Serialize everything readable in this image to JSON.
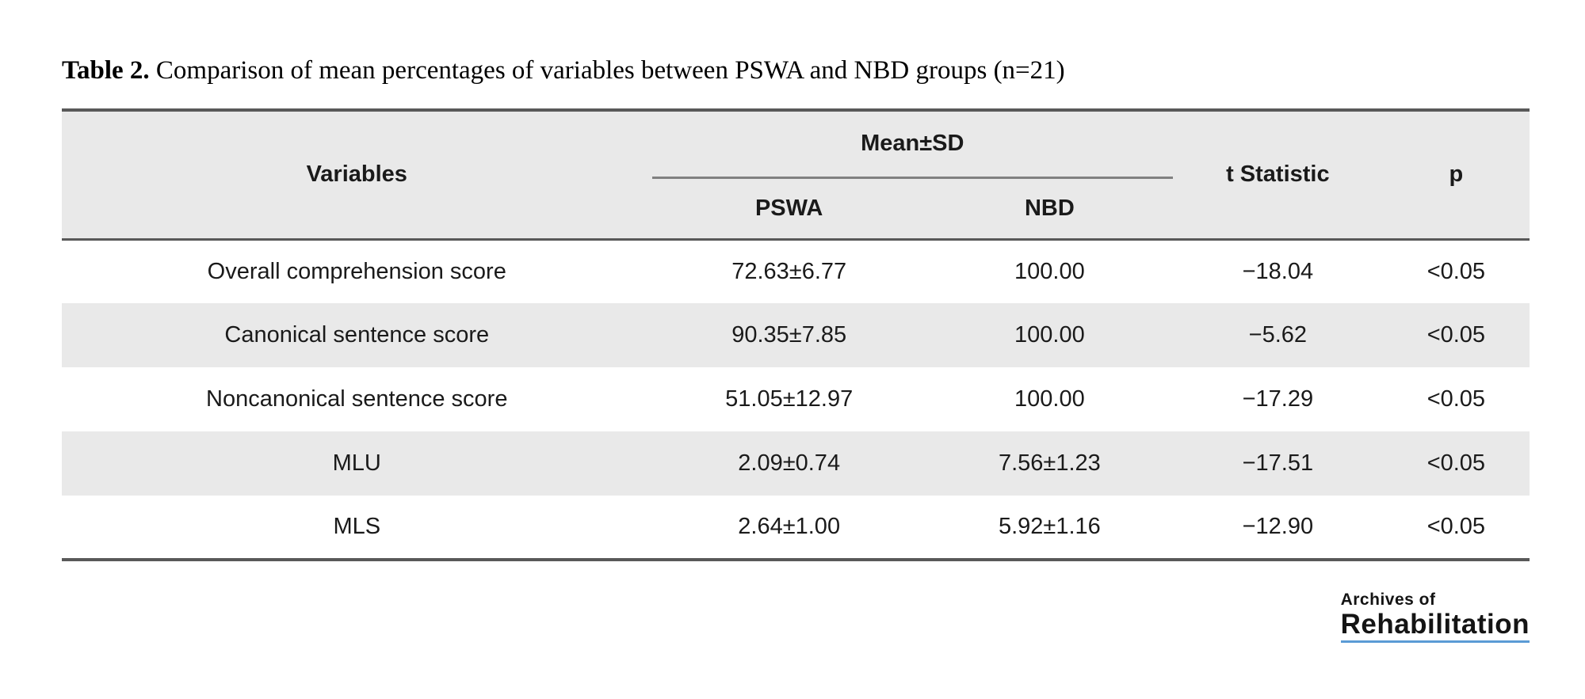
{
  "title": {
    "label": "Table 2.",
    "text": " Comparison of mean percentages of variables between PSWA and NBD groups (n=21)"
  },
  "table": {
    "header": {
      "variables": "Variables",
      "mean_sd": "Mean±SD",
      "pswa": "PSWA",
      "nbd": "NBD",
      "t_statistic": "t Statistic",
      "p": "p"
    },
    "rows": [
      {
        "variable": "Overall comprehension score",
        "pswa": "72.63±6.77",
        "nbd": "100.00",
        "t": "−18.04",
        "p": "<0.05"
      },
      {
        "variable": "Canonical sentence score",
        "pswa": "90.35±7.85",
        "nbd": "100.00",
        "t": "−5.62",
        "p": "<0.05"
      },
      {
        "variable": "Noncanonical sentence score",
        "pswa": "51.05±12.97",
        "nbd": "100.00",
        "t": "−17.29",
        "p": "<0.05"
      },
      {
        "variable": "MLU",
        "pswa": "2.09±0.74",
        "nbd": "7.56±1.23",
        "t": "−17.51",
        "p": "<0.05"
      },
      {
        "variable": "MLS",
        "pswa": "2.64±1.00",
        "nbd": "5.92±1.16",
        "t": "−12.90",
        "p": "<0.05"
      }
    ]
  },
  "logo": {
    "line1": "Archives of",
    "line2": "Rehabilitation"
  },
  "colors": {
    "stripe": "#e9e9e9",
    "border_dark": "#595959",
    "meansd_rule": "#808080",
    "logo_underline": "#5b9bd5",
    "text": "#1a1a1a"
  }
}
